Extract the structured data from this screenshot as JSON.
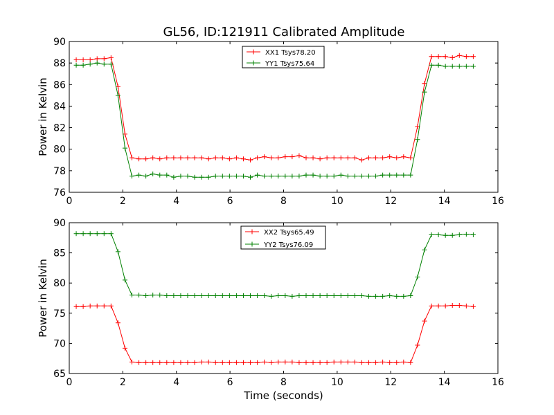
{
  "figure_title": "GL56, ID:121911 Calibrated Amplitude",
  "chart_data": [
    {
      "type": "line",
      "title": "GL56, ID:121911 Calibrated Amplitude",
      "xlabel": "",
      "ylabel": "Power in Kelvin",
      "xlim": [
        0,
        16
      ],
      "ylim": [
        76,
        90
      ],
      "xticks": [
        "0",
        "2",
        "4",
        "6",
        "8",
        "10",
        "12",
        "14",
        "16"
      ],
      "yticks": [
        "76",
        "78",
        "80",
        "82",
        "84",
        "86",
        "88",
        "90"
      ],
      "legend_position": "upper-center",
      "grid": false,
      "x": [
        0.26,
        0.52,
        0.78,
        1.04,
        1.3,
        1.56,
        1.82,
        2.08,
        2.34,
        2.6,
        2.86,
        3.12,
        3.38,
        3.64,
        3.9,
        4.16,
        4.42,
        4.68,
        4.94,
        5.2,
        5.46,
        5.72,
        5.98,
        6.24,
        6.5,
        6.76,
        7.02,
        7.28,
        7.54,
        7.8,
        8.06,
        8.32,
        8.58,
        8.84,
        9.1,
        9.36,
        9.62,
        9.88,
        10.14,
        10.4,
        10.66,
        10.92,
        11.18,
        11.44,
        11.7,
        11.96,
        12.22,
        12.48,
        12.74,
        13.0,
        13.26,
        13.52,
        13.78,
        14.04,
        14.3,
        14.56,
        14.82,
        15.08
      ],
      "series": [
        {
          "name": "XX1 Tsys78.20",
          "color": "#ff0000",
          "values": [
            88.3,
            88.3,
            88.3,
            88.4,
            88.4,
            88.5,
            85.8,
            81.4,
            79.2,
            79.1,
            79.1,
            79.2,
            79.1,
            79.2,
            79.2,
            79.2,
            79.2,
            79.2,
            79.2,
            79.1,
            79.2,
            79.2,
            79.1,
            79.2,
            79.1,
            79.0,
            79.2,
            79.3,
            79.2,
            79.2,
            79.3,
            79.3,
            79.4,
            79.2,
            79.2,
            79.1,
            79.2,
            79.2,
            79.2,
            79.2,
            79.2,
            79.0,
            79.2,
            79.2,
            79.2,
            79.3,
            79.2,
            79.3,
            79.2,
            82.1,
            86.1,
            88.6,
            88.6,
            88.6,
            88.5,
            88.7,
            88.6,
            88.6
          ]
        },
        {
          "name": "YY1 Tsys75.64",
          "color": "#008000",
          "values": [
            87.8,
            87.8,
            87.9,
            88.0,
            87.9,
            87.9,
            85.0,
            80.1,
            77.5,
            77.6,
            77.5,
            77.7,
            77.6,
            77.6,
            77.4,
            77.5,
            77.5,
            77.4,
            77.4,
            77.4,
            77.5,
            77.5,
            77.5,
            77.5,
            77.5,
            77.4,
            77.6,
            77.5,
            77.5,
            77.5,
            77.5,
            77.5,
            77.5,
            77.6,
            77.6,
            77.5,
            77.5,
            77.5,
            77.6,
            77.5,
            77.5,
            77.5,
            77.5,
            77.5,
            77.6,
            77.6,
            77.6,
            77.6,
            77.6,
            80.9,
            85.3,
            87.8,
            87.8,
            87.7,
            87.7,
            87.7,
            87.7,
            87.7
          ]
        }
      ]
    },
    {
      "type": "line",
      "title": "",
      "xlabel": "Time (seconds)",
      "ylabel": "Power in Kelvin",
      "xlim": [
        0,
        16
      ],
      "ylim": [
        65,
        90
      ],
      "xticks": [
        "0",
        "2",
        "4",
        "6",
        "8",
        "10",
        "12",
        "14",
        "16"
      ],
      "yticks": [
        "65",
        "70",
        "75",
        "80",
        "85",
        "90"
      ],
      "legend_position": "upper-center",
      "grid": false,
      "x": [
        0.26,
        0.52,
        0.78,
        1.04,
        1.3,
        1.56,
        1.82,
        2.08,
        2.34,
        2.6,
        2.86,
        3.12,
        3.38,
        3.64,
        3.9,
        4.16,
        4.42,
        4.68,
        4.94,
        5.2,
        5.46,
        5.72,
        5.98,
        6.24,
        6.5,
        6.76,
        7.02,
        7.28,
        7.54,
        7.8,
        8.06,
        8.32,
        8.58,
        8.84,
        9.1,
        9.36,
        9.62,
        9.88,
        10.14,
        10.4,
        10.66,
        10.92,
        11.18,
        11.44,
        11.7,
        11.96,
        12.22,
        12.48,
        12.74,
        13.0,
        13.26,
        13.52,
        13.78,
        14.04,
        14.3,
        14.56,
        14.82,
        15.08
      ],
      "series": [
        {
          "name": "XX2 Tsys65.49",
          "color": "#ff0000",
          "values": [
            76.1,
            76.1,
            76.2,
            76.2,
            76.2,
            76.2,
            73.4,
            69.2,
            66.9,
            66.8,
            66.8,
            66.8,
            66.8,
            66.8,
            66.8,
            66.8,
            66.8,
            66.8,
            66.9,
            66.9,
            66.8,
            66.8,
            66.8,
            66.8,
            66.8,
            66.8,
            66.8,
            66.9,
            66.8,
            66.9,
            66.9,
            66.9,
            66.8,
            66.8,
            66.8,
            66.8,
            66.8,
            66.9,
            66.9,
            66.9,
            66.9,
            66.8,
            66.8,
            66.8,
            66.9,
            66.8,
            66.8,
            66.9,
            66.8,
            69.7,
            73.7,
            76.2,
            76.2,
            76.2,
            76.3,
            76.3,
            76.2,
            76.1
          ]
        },
        {
          "name": "YY2 Tsys76.09",
          "color": "#008000",
          "values": [
            88.2,
            88.2,
            88.2,
            88.2,
            88.2,
            88.2,
            85.2,
            80.5,
            78.0,
            78.0,
            77.9,
            78.0,
            78.0,
            77.9,
            77.9,
            77.9,
            77.9,
            77.9,
            77.9,
            77.9,
            77.9,
            77.9,
            77.9,
            77.9,
            77.9,
            77.9,
            77.9,
            77.9,
            77.8,
            77.9,
            77.9,
            77.8,
            77.9,
            77.9,
            77.9,
            77.9,
            77.9,
            77.9,
            77.9,
            77.9,
            77.9,
            77.9,
            77.8,
            77.8,
            77.8,
            77.9,
            77.8,
            77.8,
            77.9,
            81.0,
            85.5,
            88.0,
            88.0,
            87.9,
            87.9,
            88.0,
            88.1,
            88.0
          ]
        }
      ]
    }
  ]
}
